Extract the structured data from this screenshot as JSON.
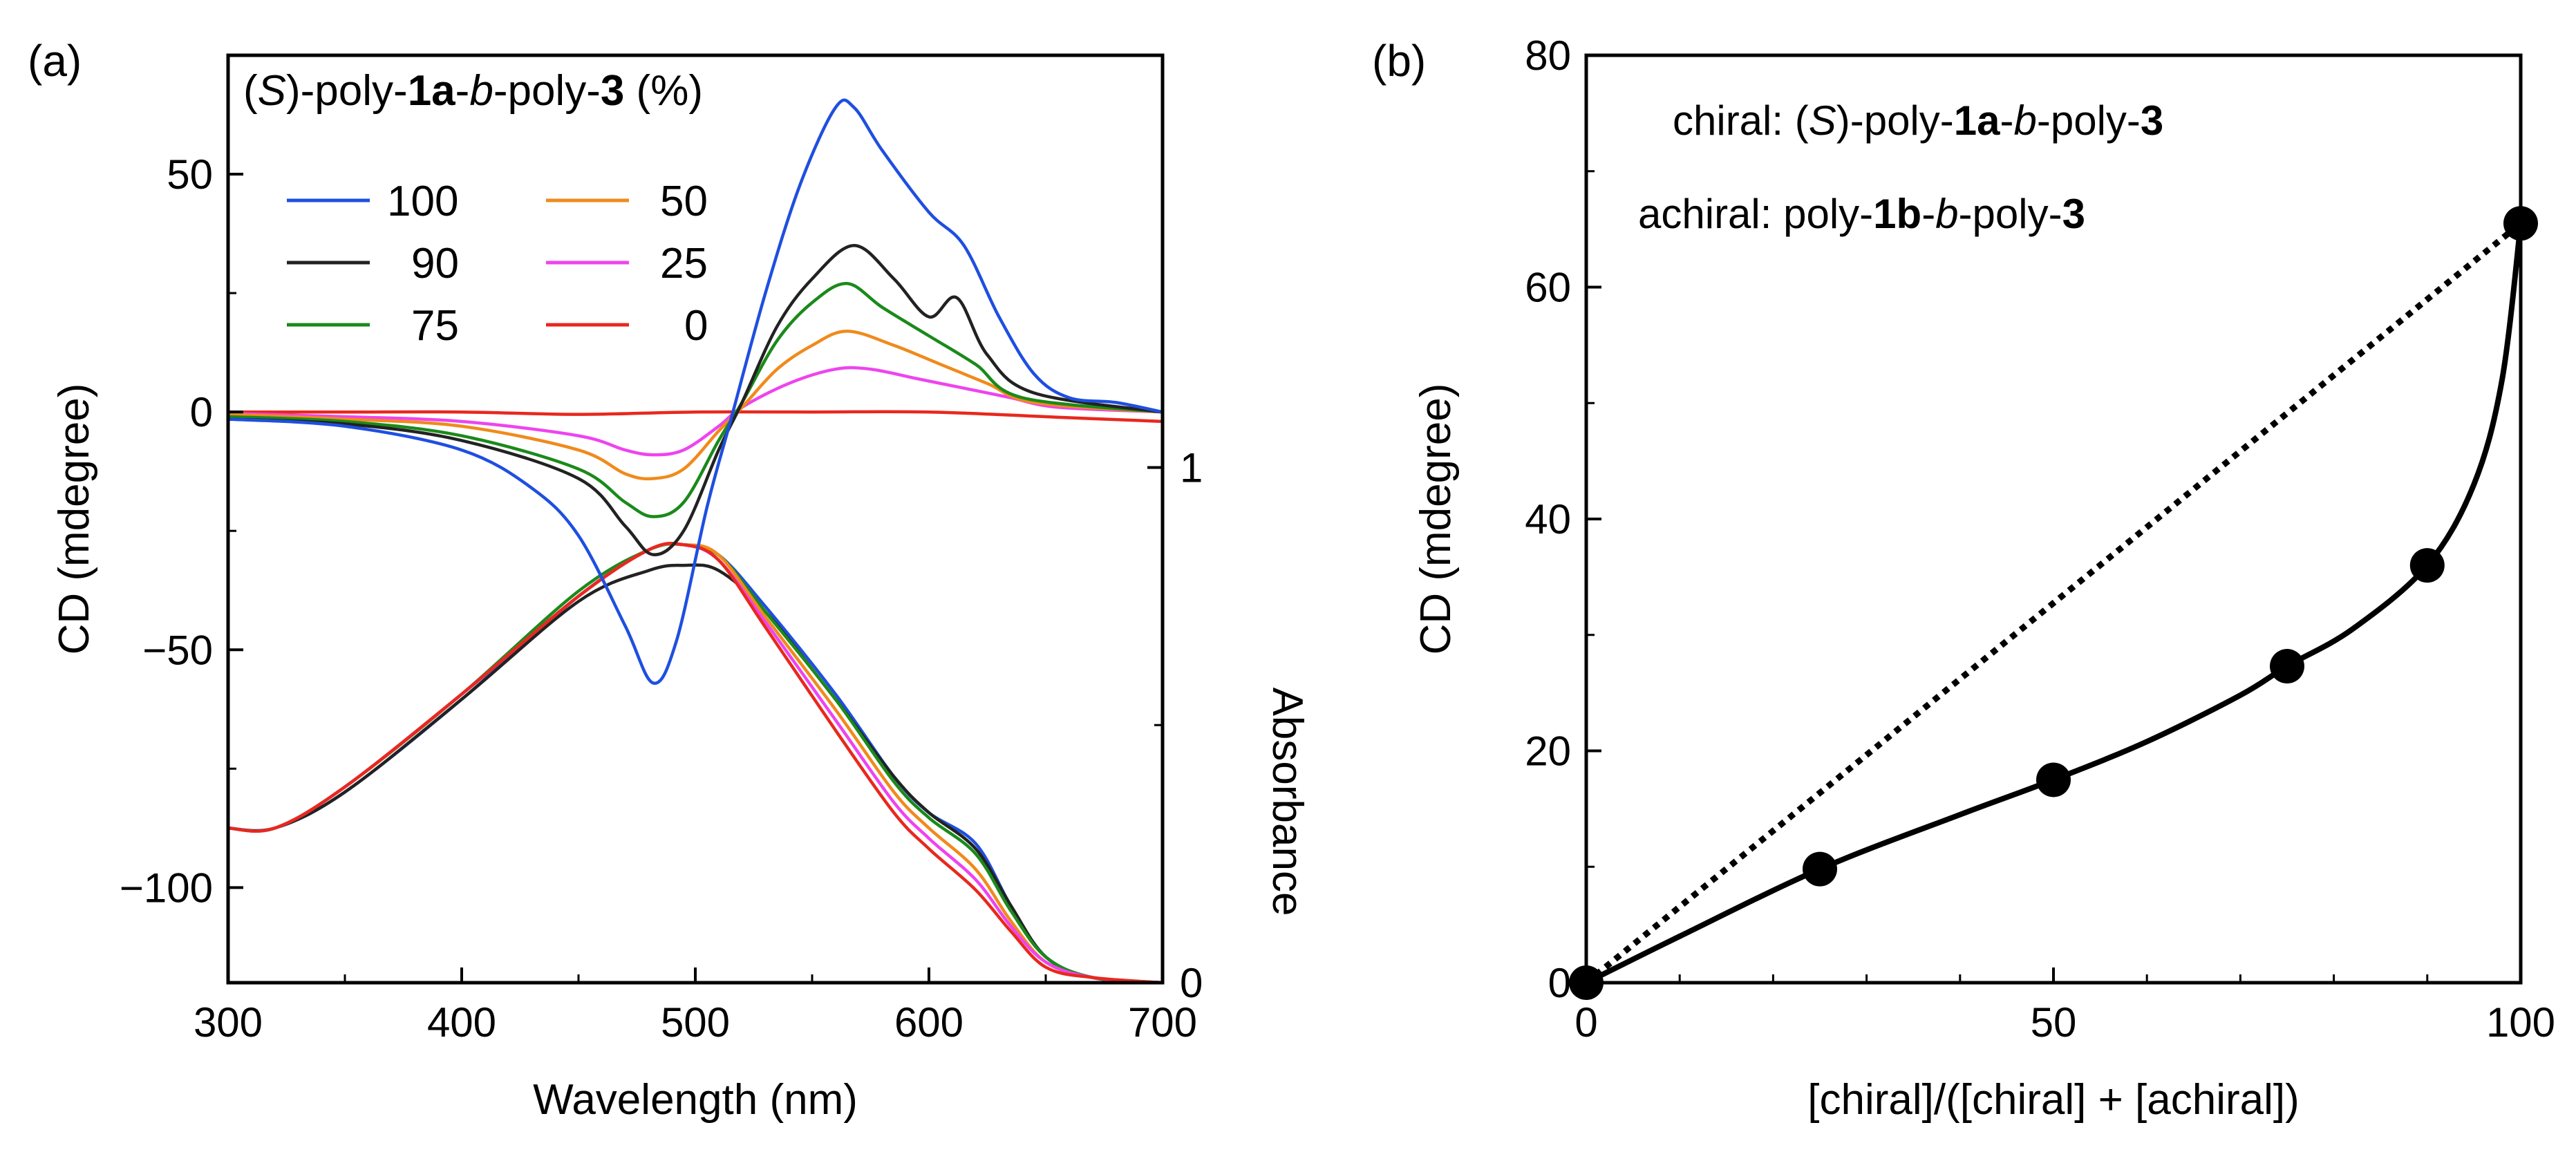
{
  "chart_data": [
    {
      "panel": "(a)",
      "type": "line",
      "title": "",
      "legend_title": {
        "pre": "(",
        "italic": "S",
        "mid": ")-poly-",
        "bold1": "1a",
        "dash": "-",
        "italic2": "b",
        "mid2": "-poly-",
        "bold2": "3",
        "post": " (%)"
      },
      "xlabel": "Wavelength (nm)",
      "ylabel": "CD (mdegree)",
      "y2label": "Absorbance",
      "xlim": [
        300,
        700
      ],
      "ylim": [
        -120,
        75
      ],
      "y2lim": [
        0,
        1.8
      ],
      "xticks": [
        300,
        400,
        500,
        600,
        700
      ],
      "xtick_labels": [
        "300",
        "400",
        "500",
        "600",
        "700"
      ],
      "yticks": [
        50,
        0,
        -50,
        -100
      ],
      "ytick_labels": [
        "50",
        "0",
        "−50",
        "−100"
      ],
      "y2ticks": [
        1,
        0
      ],
      "y2tick_labels": [
        "1",
        "0"
      ],
      "legend_position": "top-left",
      "series": [
        {
          "name": "100",
          "label": "100",
          "color": "#1f4fe0",
          "cd": [
            [
              300,
              -1.5
            ],
            [
              350,
              -3
            ],
            [
              400,
              -8
            ],
            [
              430,
              -16
            ],
            [
              450,
              -26
            ],
            [
              470,
              -45
            ],
            [
              482,
              -57
            ],
            [
              492,
              -48
            ],
            [
              505,
              -20
            ],
            [
              515,
              -2
            ],
            [
              530,
              25
            ],
            [
              545,
              48
            ],
            [
              560,
              64
            ],
            [
              568,
              64
            ],
            [
              580,
              55
            ],
            [
              600,
              42
            ],
            [
              615,
              35
            ],
            [
              630,
              20
            ],
            [
              645,
              8
            ],
            [
              660,
              3
            ],
            [
              680,
              2
            ],
            [
              700,
              0
            ]
          ],
          "abs": [
            [
              300,
              0.3
            ],
            [
              320,
              0.3
            ],
            [
              350,
              0.37
            ],
            [
              400,
              0.55
            ],
            [
              450,
              0.75
            ],
            [
              480,
              0.84
            ],
            [
              495,
              0.85
            ],
            [
              510,
              0.83
            ],
            [
              530,
              0.73
            ],
            [
              560,
              0.56
            ],
            [
              585,
              0.4
            ],
            [
              600,
              0.33
            ],
            [
              620,
              0.27
            ],
            [
              635,
              0.15
            ],
            [
              650,
              0.05
            ],
            [
              670,
              0.01
            ],
            [
              700,
              0
            ]
          ]
        },
        {
          "name": "90",
          "label": "90",
          "color": "#222222",
          "cd": [
            [
              300,
              -1.5
            ],
            [
              350,
              -2.5
            ],
            [
              400,
              -6
            ],
            [
              450,
              -14
            ],
            [
              470,
              -24
            ],
            [
              482,
              -30
            ],
            [
              495,
              -25
            ],
            [
              510,
              -8
            ],
            [
              520,
              2
            ],
            [
              535,
              18
            ],
            [
              550,
              28
            ],
            [
              568,
              35
            ],
            [
              585,
              28
            ],
            [
              600,
              20
            ],
            [
              612,
              24
            ],
            [
              625,
              12
            ],
            [
              645,
              4
            ],
            [
              700,
              0
            ]
          ],
          "abs": [
            [
              300,
              0.3
            ],
            [
              320,
              0.3
            ],
            [
              350,
              0.37
            ],
            [
              400,
              0.55
            ],
            [
              450,
              0.74
            ],
            [
              480,
              0.8
            ],
            [
              495,
              0.81
            ],
            [
              510,
              0.8
            ],
            [
              530,
              0.72
            ],
            [
              560,
              0.55
            ],
            [
              585,
              0.4
            ],
            [
              600,
              0.33
            ],
            [
              620,
              0.26
            ],
            [
              635,
              0.15
            ],
            [
              650,
              0.05
            ],
            [
              670,
              0.01
            ],
            [
              700,
              0
            ]
          ]
        },
        {
          "name": "75",
          "label": "75",
          "color": "#1a8a1a",
          "cd": [
            [
              300,
              -1
            ],
            [
              350,
              -2
            ],
            [
              400,
              -5
            ],
            [
              450,
              -12
            ],
            [
              470,
              -19
            ],
            [
              482,
              -22
            ],
            [
              495,
              -19
            ],
            [
              510,
              -6
            ],
            [
              520,
              2
            ],
            [
              535,
              15
            ],
            [
              550,
              23
            ],
            [
              565,
              27
            ],
            [
              580,
              22
            ],
            [
              600,
              16
            ],
            [
              620,
              10
            ],
            [
              640,
              3
            ],
            [
              700,
              0
            ]
          ],
          "abs": [
            [
              300,
              0.3
            ],
            [
              320,
              0.3
            ],
            [
              350,
              0.38
            ],
            [
              400,
              0.56
            ],
            [
              450,
              0.76
            ],
            [
              480,
              0.84
            ],
            [
              495,
              0.85
            ],
            [
              510,
              0.83
            ],
            [
              530,
              0.72
            ],
            [
              560,
              0.55
            ],
            [
              585,
              0.39
            ],
            [
              600,
              0.32
            ],
            [
              620,
              0.25
            ],
            [
              635,
              0.14
            ],
            [
              650,
              0.05
            ],
            [
              670,
              0.01
            ],
            [
              700,
              0
            ]
          ]
        },
        {
          "name": "50",
          "label": "50",
          "color": "#f08a1c",
          "cd": [
            [
              300,
              -0.5
            ],
            [
              350,
              -1.5
            ],
            [
              400,
              -3
            ],
            [
              450,
              -8
            ],
            [
              470,
              -13
            ],
            [
              482,
              -14
            ],
            [
              495,
              -12
            ],
            [
              510,
              -4
            ],
            [
              520,
              1
            ],
            [
              535,
              9
            ],
            [
              550,
              14
            ],
            [
              565,
              17
            ],
            [
              585,
              14
            ],
            [
              605,
              10
            ],
            [
              625,
              6
            ],
            [
              645,
              2
            ],
            [
              700,
              0
            ]
          ],
          "abs": [
            [
              300,
              0.3
            ],
            [
              320,
              0.3
            ],
            [
              350,
              0.38
            ],
            [
              400,
              0.56
            ],
            [
              450,
              0.75
            ],
            [
              480,
              0.84
            ],
            [
              495,
              0.85
            ],
            [
              510,
              0.83
            ],
            [
              530,
              0.71
            ],
            [
              560,
              0.53
            ],
            [
              585,
              0.37
            ],
            [
              600,
              0.3
            ],
            [
              620,
              0.22
            ],
            [
              635,
              0.12
            ],
            [
              650,
              0.04
            ],
            [
              670,
              0.01
            ],
            [
              700,
              0
            ]
          ]
        },
        {
          "name": "25",
          "label": "25",
          "color": "#ee44ee",
          "cd": [
            [
              300,
              -0.3
            ],
            [
              350,
              -1
            ],
            [
              400,
              -2
            ],
            [
              450,
              -5
            ],
            [
              470,
              -8
            ],
            [
              482,
              -9
            ],
            [
              495,
              -8
            ],
            [
              510,
              -3
            ],
            [
              520,
              1
            ],
            [
              540,
              6
            ],
            [
              560,
              9
            ],
            [
              575,
              9
            ],
            [
              595,
              7
            ],
            [
              615,
              5
            ],
            [
              635,
              3
            ],
            [
              655,
              1
            ],
            [
              700,
              0
            ]
          ],
          "abs": [
            [
              300,
              0.3
            ],
            [
              320,
              0.3
            ],
            [
              350,
              0.38
            ],
            [
              400,
              0.56
            ],
            [
              450,
              0.75
            ],
            [
              480,
              0.84
            ],
            [
              495,
              0.85
            ],
            [
              510,
              0.82
            ],
            [
              530,
              0.7
            ],
            [
              560,
              0.51
            ],
            [
              585,
              0.35
            ],
            [
              600,
              0.28
            ],
            [
              620,
              0.2
            ],
            [
              635,
              0.11
            ],
            [
              650,
              0.04
            ],
            [
              670,
              0.01
            ],
            [
              700,
              0
            ]
          ]
        },
        {
          "name": "0",
          "label": "0",
          "color": "#e8281e",
          "cd": [
            [
              300,
              0
            ],
            [
              350,
              0
            ],
            [
              400,
              0
            ],
            [
              450,
              -0.5
            ],
            [
              500,
              0
            ],
            [
              550,
              0
            ],
            [
              600,
              0
            ],
            [
              650,
              -1
            ],
            [
              700,
              -2
            ]
          ],
          "abs": [
            [
              300,
              0.3
            ],
            [
              320,
              0.3
            ],
            [
              350,
              0.38
            ],
            [
              400,
              0.56
            ],
            [
              450,
              0.75
            ],
            [
              480,
              0.84
            ],
            [
              495,
              0.85
            ],
            [
              510,
              0.82
            ],
            [
              530,
              0.69
            ],
            [
              560,
              0.49
            ],
            [
              585,
              0.33
            ],
            [
              600,
              0.26
            ],
            [
              620,
              0.18
            ],
            [
              635,
              0.1
            ],
            [
              650,
              0.03
            ],
            [
              670,
              0.01
            ],
            [
              700,
              0
            ]
          ]
        }
      ]
    },
    {
      "panel": "(b)",
      "type": "scatter",
      "xlabel": "[chiral]/([chiral] + [achiral])",
      "ylabel": "CD (mdegree)",
      "xlim": [
        0,
        100
      ],
      "ylim": [
        0,
        80
      ],
      "xticks": [
        0,
        50,
        100
      ],
      "xtick_labels": [
        "0",
        "50",
        "100"
      ],
      "yticks": [
        0,
        20,
        40,
        60,
        80
      ],
      "ytick_labels": [
        "0",
        "20",
        "40",
        "60",
        "80"
      ],
      "annotations": [
        {
          "prefix": "chiral: ",
          "pre": "(",
          "italic": "S",
          "mid": ")-poly-",
          "bold1": "1a",
          "dash": "-",
          "italic2": "b",
          "mid2": "-poly-",
          "bold2": "3"
        },
        {
          "prefix": "achiral: ",
          "mid": "poly-",
          "bold1": "1b",
          "dash": "-",
          "italic2": "b",
          "mid2": "-poly-",
          "bold2": "3"
        }
      ],
      "points": [
        [
          0,
          0
        ],
        [
          25,
          9.8
        ],
        [
          50,
          17.5
        ],
        [
          75,
          27.3
        ],
        [
          90,
          36
        ],
        [
          100,
          65.5
        ]
      ],
      "fit_curve": [
        [
          0,
          0
        ],
        [
          10,
          4
        ],
        [
          25,
          9.8
        ],
        [
          40,
          14.5
        ],
        [
          50,
          17.5
        ],
        [
          60,
          20.8
        ],
        [
          70,
          24.8
        ],
        [
          75,
          27.3
        ],
        [
          82,
          30.5
        ],
        [
          90,
          36
        ],
        [
          95,
          43
        ],
        [
          98,
          52
        ],
        [
          100,
          65.5
        ]
      ],
      "linear_reference": [
        [
          0,
          0
        ],
        [
          100,
          65.5
        ]
      ]
    }
  ]
}
